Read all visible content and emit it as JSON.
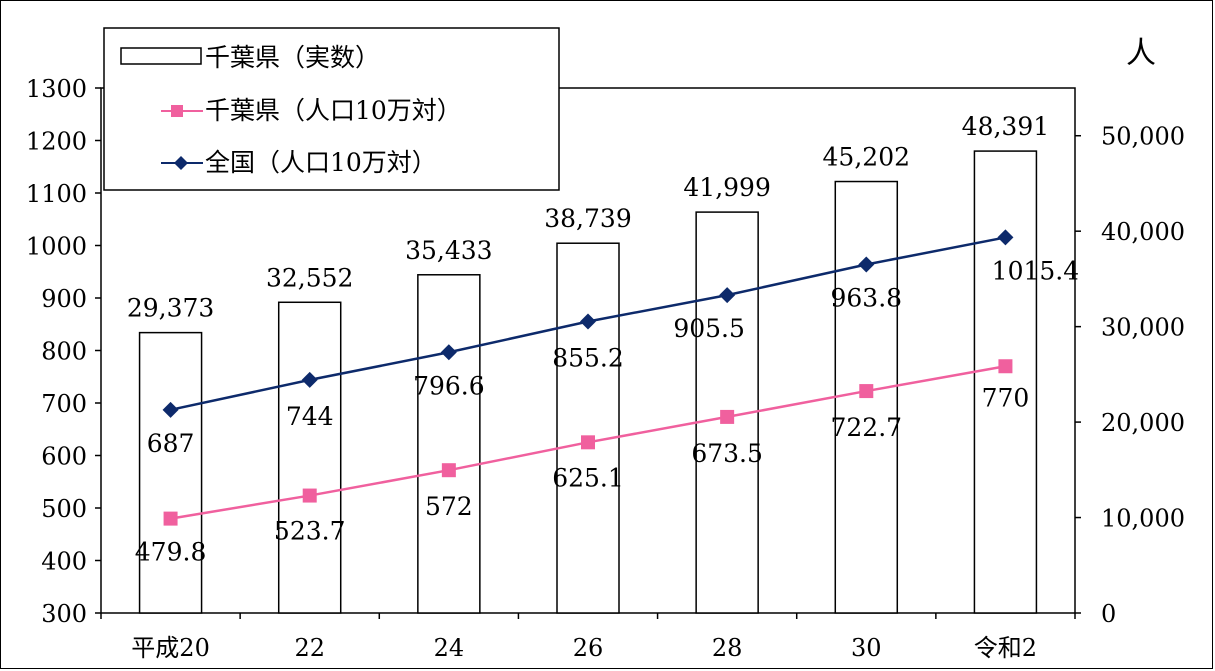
{
  "chart_data": {
    "type": "bar",
    "categories": [
      "平成20",
      "22",
      "24",
      "26",
      "28",
      "30",
      "令和2"
    ],
    "series": [
      {
        "name": "千葉県（実数）",
        "kind": "bar",
        "axis": "right",
        "values": [
          29373,
          32552,
          35433,
          38739,
          41999,
          45202,
          48391
        ],
        "labels": [
          "29,373",
          "32,552",
          "35,433",
          "38,739",
          "41,999",
          "45,202",
          "48,391"
        ],
        "color": "#000000"
      },
      {
        "name": "千葉県（人口10万対）",
        "kind": "line",
        "axis": "left",
        "values": [
          479.8,
          523.7,
          572,
          625.1,
          673.5,
          722.7,
          770
        ],
        "labels": [
          "479.8",
          "523.7",
          "572",
          "625.1",
          "673.5",
          "722.7",
          "770"
        ],
        "color": "#f0609e",
        "marker": "square"
      },
      {
        "name": "全国（人口10万対）",
        "kind": "line",
        "axis": "left",
        "values": [
          687,
          744,
          796.6,
          855.2,
          905.5,
          963.8,
          1015.4
        ],
        "labels": [
          "687",
          "744",
          "796.6",
          "855.2",
          "905.5",
          "963.8",
          "1015.4"
        ],
        "color": "#0d2a6b",
        "marker": "diamond"
      }
    ],
    "left_axis": {
      "ylim": [
        300,
        1300
      ],
      "ticks": [
        "300",
        "400",
        "500",
        "600",
        "700",
        "800",
        "900",
        "1000",
        "1100",
        "1200",
        "1300"
      ]
    },
    "right_axis": {
      "unit": "人",
      "ylim": [
        0,
        55000
      ],
      "ticks": [
        "0",
        "10,000",
        "20,000",
        "30,000",
        "40,000",
        "50,000"
      ]
    },
    "grid": false,
    "legend_position": "top-left"
  }
}
